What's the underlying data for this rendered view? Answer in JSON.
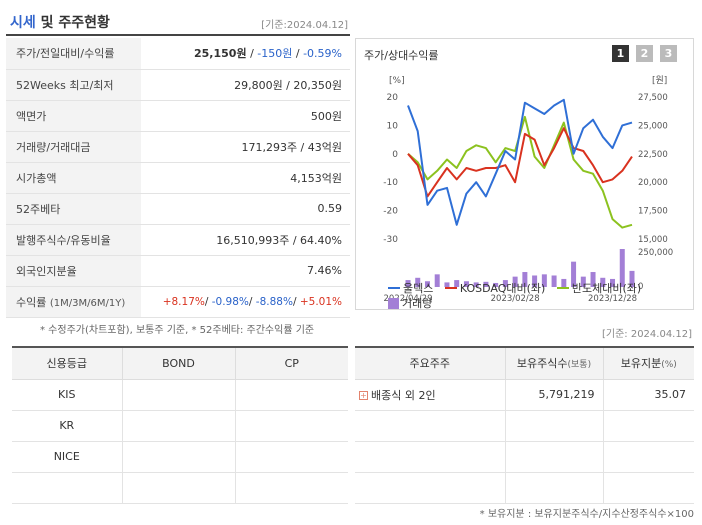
{
  "header": {
    "title_blue": "시세",
    "title_rest": " 및 주주현황",
    "date": "[기준:2024.04.12]"
  },
  "quote_rows": [
    {
      "label": "주가/전일대비/수익률",
      "price": "25,150원",
      "sep1": " / ",
      "change": "-150원",
      "sep2": " / ",
      "rate": "-0.59%"
    },
    {
      "label": "52Weeks 최고/최저",
      "value": "29,800원 / 20,350원"
    },
    {
      "label": "액면가",
      "value": "500원"
    },
    {
      "label": "거래량/거래대금",
      "value": "171,293주 / 43억원"
    },
    {
      "label": "시가총액",
      "value": "4,153억원"
    },
    {
      "label": "52주베타",
      "value": "0.59"
    },
    {
      "label": "발행주식수/유동비율",
      "value": "16,510,993주 / 64.40%"
    },
    {
      "label": "외국인지분율",
      "value": "7.46%"
    },
    {
      "label": "수익률",
      "label_sub": "(1M/3M/6M/1Y)",
      "r1": "+8.17%",
      "r2": "-0.98%",
      "r3": "-8.88%",
      "r4": "+5.01%",
      "sep": "/"
    }
  ],
  "note_left": "* 수정주가(차트포함), 보통주 기준, * 52주베타: 주간수익률 기준",
  "chart_panel": {
    "title": "주가/상대수익률",
    "pages": [
      "1",
      "2",
      "3"
    ]
  },
  "chart_data": {
    "type": "line",
    "left_axis_unit": "[%]",
    "right_axis_unit": "[원]",
    "left_ticks": [
      "20",
      "10",
      "0",
      "-10",
      "-20",
      "-30"
    ],
    "left_ylim": [
      -30,
      20
    ],
    "right_ticks": [
      "27,500",
      "25,000",
      "22,500",
      "20,000",
      "17,500",
      "15,000"
    ],
    "volume_ticks": [
      "250,000",
      "0"
    ],
    "x_ticks": [
      "2022/04/29",
      "2023/02/28",
      "2023/12/28"
    ],
    "series": [
      {
        "name": "울덱스",
        "color": "#2f6fd6",
        "values": [
          17,
          8,
          -18,
          -13,
          -12,
          -25,
          -14,
          -10,
          -15,
          -7,
          1,
          -2,
          18,
          16,
          14,
          17,
          19,
          0,
          9,
          12,
          6,
          2,
          10,
          11
        ]
      },
      {
        "name": "KOSDAQ대비(좌)",
        "color": "#d9321f",
        "values": [
          0,
          -4,
          -15,
          -10,
          -5,
          -9,
          -5,
          -6,
          -5,
          -5,
          -4,
          -10,
          7,
          5,
          -4,
          2,
          9,
          2,
          1,
          -4,
          -10,
          -9,
          -6,
          -1
        ]
      },
      {
        "name": "반도체대비(좌)",
        "color": "#8cc21f",
        "values": [
          0,
          -3,
          -9,
          -6,
          -2,
          -5,
          1,
          3,
          2,
          -3,
          2,
          1,
          13,
          -1,
          -5,
          3,
          11,
          -2,
          -6,
          -7,
          -13,
          -23,
          -26,
          -25
        ]
      }
    ],
    "volume": {
      "name": "거래량",
      "color": "#a37fd6",
      "values": [
        60,
        80,
        50,
        110,
        40,
        60,
        50,
        40,
        45,
        35,
        60,
        90,
        130,
        100,
        110,
        100,
        70,
        220,
        90,
        130,
        80,
        70,
        330,
        140
      ]
    }
  },
  "date_right": "[기준: 2024.04.12]",
  "credit_table": {
    "headers": [
      "신용등급",
      "BOND",
      "CP"
    ],
    "rows": [
      [
        "KIS",
        "",
        ""
      ],
      [
        "KR",
        "",
        ""
      ],
      [
        "NICE",
        "",
        ""
      ],
      [
        "",
        "",
        ""
      ]
    ]
  },
  "holders_table": {
    "headers": [
      "주요주주",
      "보유주식수",
      "(보통)",
      "보유지분",
      "(%)"
    ],
    "rows": [
      {
        "name": "배종식 외 2인",
        "shares": "5,791,219",
        "pct": "35.07"
      },
      {
        "name": "",
        "shares": "",
        "pct": ""
      },
      {
        "name": "",
        "shares": "",
        "pct": ""
      },
      {
        "name": "",
        "shares": "",
        "pct": ""
      }
    ]
  },
  "note_right": "* 보유지분 : 보유지분주식수/지수산정주식수×100"
}
